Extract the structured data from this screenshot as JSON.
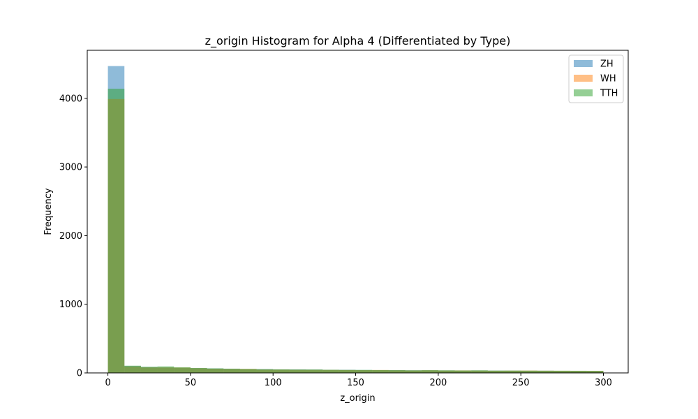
{
  "chart_data": {
    "type": "bar",
    "title": "z_origin Histogram for Alpha 4 (Differentiated by Type)",
    "xlabel": "z_origin",
    "ylabel": "Frequency",
    "xlim": [
      -12.5,
      315
    ],
    "ylim": [
      0,
      4700
    ],
    "xticks": [
      0,
      50,
      100,
      150,
      200,
      250,
      300
    ],
    "yticks": [
      0,
      1000,
      2000,
      3000,
      4000
    ],
    "bin_edges": [
      0,
      10,
      20,
      30,
      40,
      50,
      60,
      70,
      80,
      90,
      100,
      110,
      120,
      130,
      140,
      150,
      160,
      170,
      180,
      190,
      200,
      210,
      220,
      230,
      240,
      250,
      260,
      270,
      280,
      290,
      300
    ],
    "legend_position": "upper right",
    "grid": false,
    "series": [
      {
        "name": "ZH",
        "color": "#1f77b4",
        "alpha": 0.5,
        "values": [
          4470,
          100,
          85,
          80,
          75,
          70,
          65,
          60,
          55,
          55,
          50,
          50,
          48,
          45,
          45,
          42,
          40,
          40,
          38,
          38,
          36,
          35,
          35,
          33,
          33,
          32,
          32,
          30,
          30,
          30
        ]
      },
      {
        "name": "WH",
        "color": "#ff7f0e",
        "alpha": 0.5,
        "values": [
          3990,
          95,
          80,
          80,
          78,
          68,
          62,
          58,
          58,
          50,
          48,
          46,
          45,
          44,
          42,
          40,
          42,
          38,
          36,
          38,
          35,
          36,
          34,
          32,
          33,
          34,
          32,
          31,
          30,
          30
        ]
      },
      {
        "name": "TTH",
        "color": "#2ca02c",
        "alpha": 0.5,
        "values": [
          4140,
          105,
          90,
          95,
          82,
          72,
          66,
          62,
          58,
          54,
          52,
          50,
          50,
          46,
          44,
          44,
          42,
          40,
          38,
          40,
          38,
          36,
          38,
          34,
          34,
          33,
          32,
          32,
          31,
          30
        ]
      }
    ]
  }
}
